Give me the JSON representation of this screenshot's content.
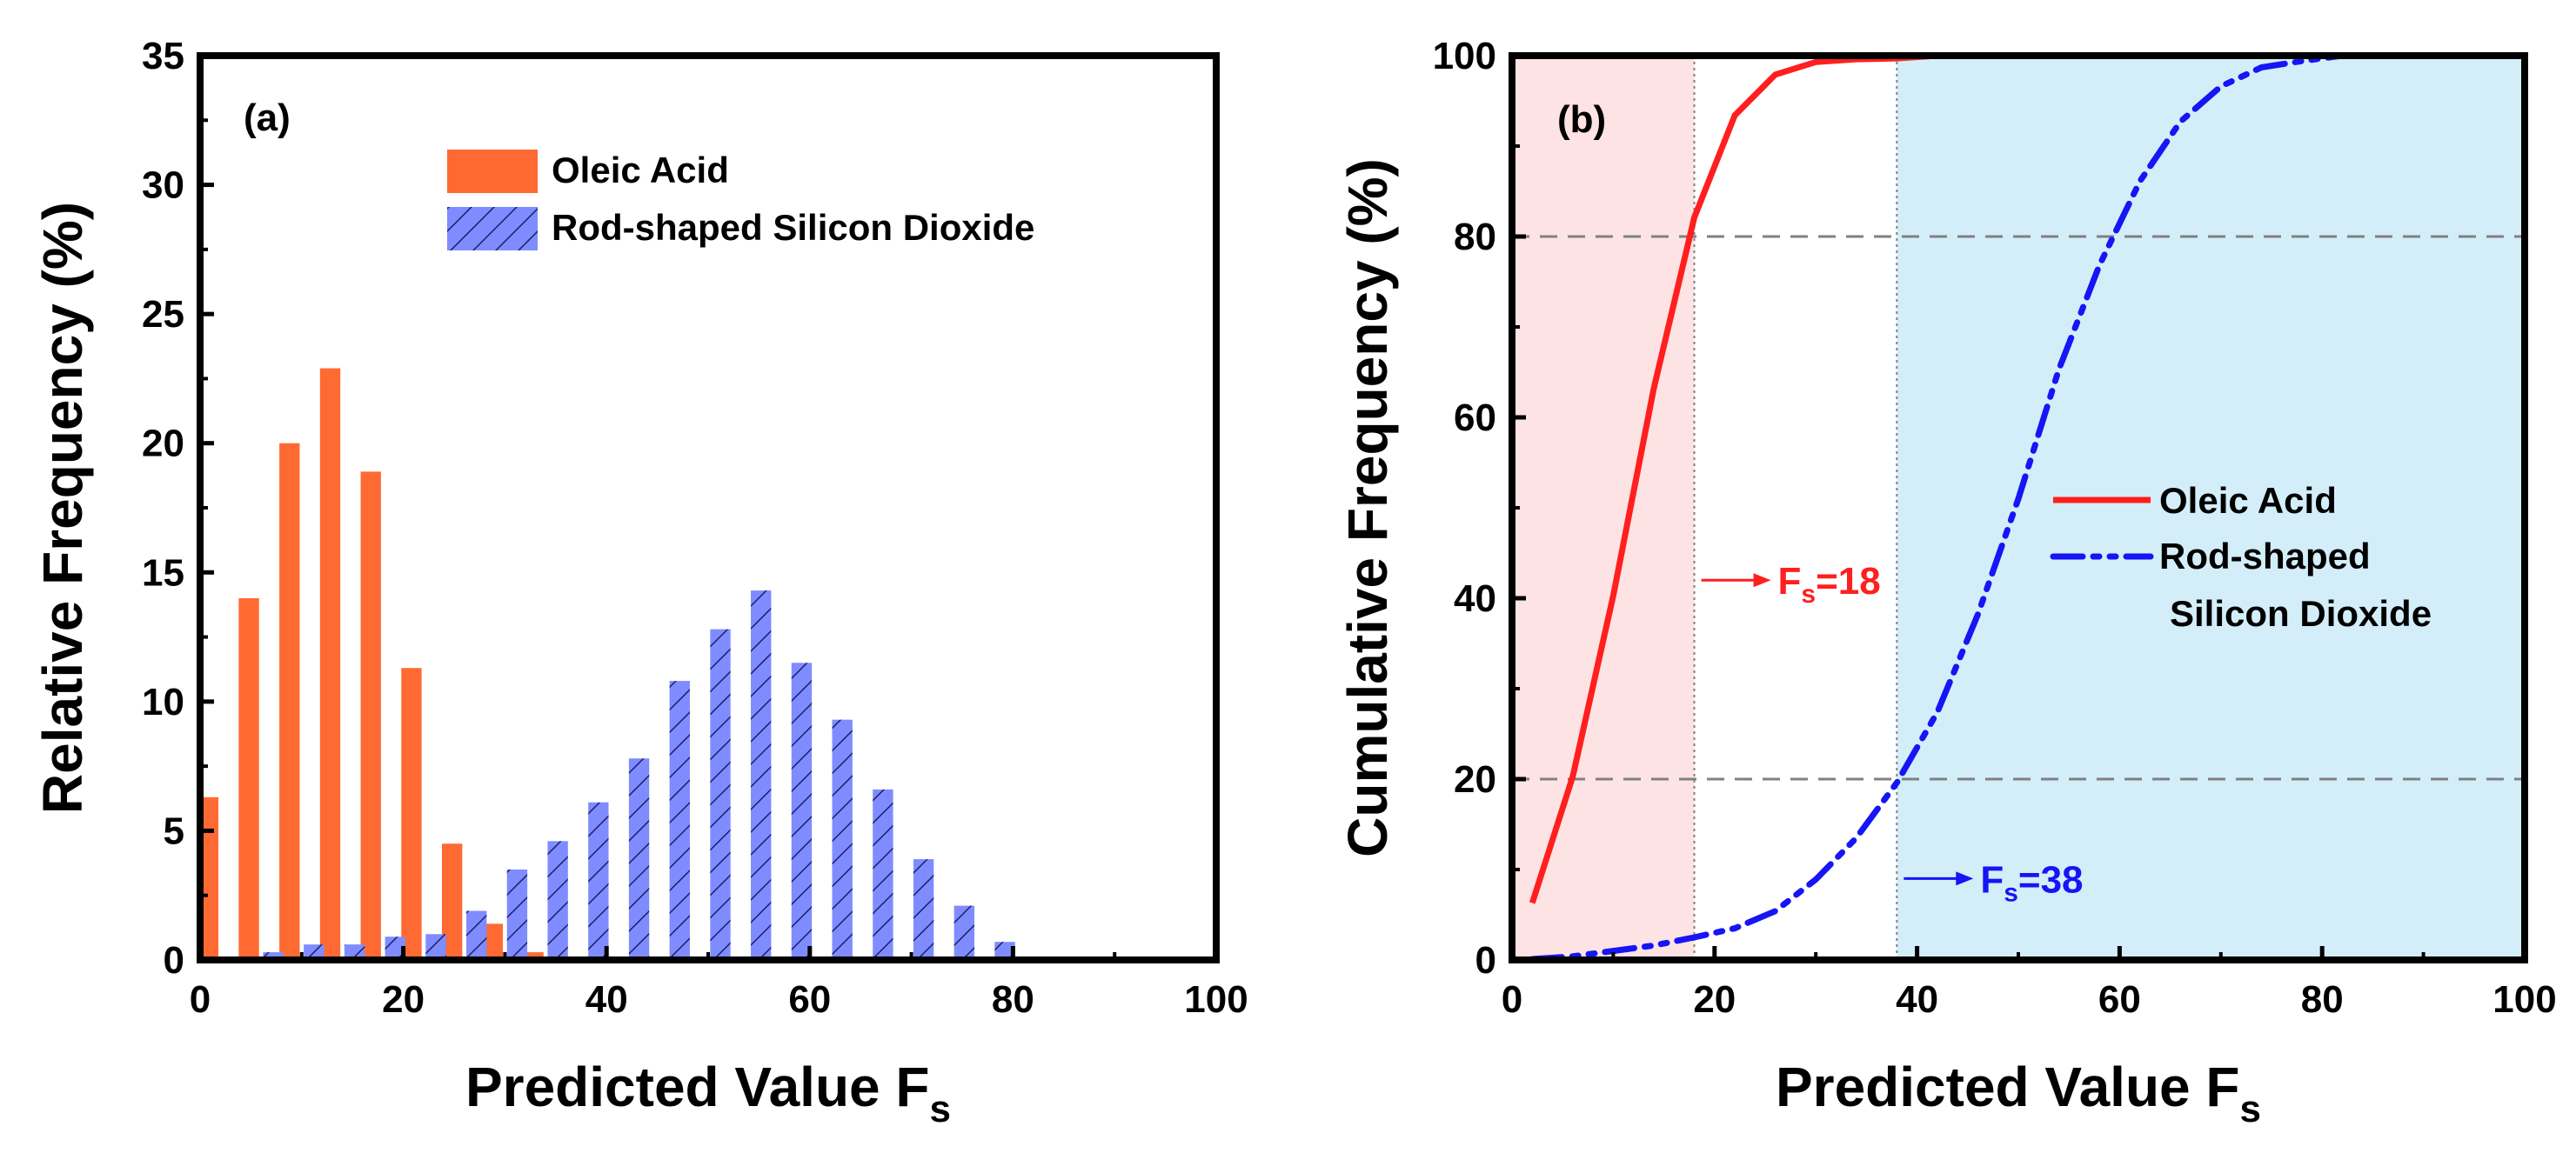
{
  "colors": {
    "oleic_bar": "#ff6a33",
    "silica_bar": "#7f8cff",
    "oleic_line": "#ff1f1f",
    "silica_line": "#1515f5",
    "oleic_region": "#fde3e3",
    "silica_region": "#d3eef9",
    "hatch": "#1a1a66",
    "grid": "#808080"
  },
  "chart_data": [
    {
      "type": "bar",
      "panel_label": "(a)",
      "xlabel": "Predicted Value F",
      "xlabel_sub": "s",
      "ylabel": "Relative Frequency (%)",
      "xlim": [
        0,
        100
      ],
      "ylim": [
        0,
        35
      ],
      "xticks": [
        0,
        20,
        40,
        60,
        80,
        100
      ],
      "yticks": [
        0,
        5,
        10,
        15,
        20,
        25,
        30,
        35
      ],
      "bin_width": 4,
      "legend": {
        "position": "top-center",
        "entries": [
          "Oleic Acid",
          "Rod-shaped Silicon Dioxide"
        ]
      },
      "series": [
        {
          "name": "Oleic Acid",
          "style": "solid",
          "x": [
            0.8,
            4.8,
            8.8,
            12.8,
            16.8,
            20.8,
            24.8,
            28.8,
            32.8
          ],
          "values": [
            6.3,
            14.0,
            20.0,
            22.9,
            18.9,
            11.3,
            4.5,
            1.4,
            0.3
          ]
        },
        {
          "name": "Rod-shaped Silicon Dioxide",
          "style": "hatched",
          "x": [
            3.2,
            7.2,
            11.2,
            15.2,
            19.2,
            23.2,
            27.2,
            31.2,
            35.2,
            39.2,
            43.2,
            47.2,
            51.2,
            55.2,
            59.2,
            63.2,
            67.2,
            71.2,
            75.2,
            79.2
          ],
          "values": [
            0.1,
            0.3,
            0.6,
            0.6,
            0.9,
            1.0,
            1.9,
            3.5,
            4.6,
            6.1,
            7.8,
            10.8,
            12.8,
            14.3,
            11.5,
            9.3,
            6.6,
            3.9,
            2.1,
            0.7
          ]
        }
      ]
    },
    {
      "type": "line",
      "panel_label": "(b)",
      "xlabel": "Predicted Value F",
      "xlabel_sub": "s",
      "ylabel": "Cumulative Frequency (%)",
      "xlim": [
        0,
        100
      ],
      "ylim": [
        0,
        100
      ],
      "xticks": [
        0,
        20,
        40,
        60,
        80,
        100
      ],
      "yticks": [
        0,
        20,
        40,
        60,
        80,
        100
      ],
      "hlines": [
        20,
        80
      ],
      "regions": [
        {
          "series": "Oleic Acid",
          "x0": 0,
          "x1": 18
        },
        {
          "series": "Rod-shaped Silicon Dioxide",
          "x0": 38,
          "x1": 100
        }
      ],
      "annotations": [
        {
          "label": "F",
          "sub": "s",
          "value": "=18",
          "x": 18,
          "y": 42,
          "series": "Oleic Acid"
        },
        {
          "label": "F",
          "sub": "s",
          "value": "=38",
          "x": 38,
          "y": 9,
          "series": "Rod-shaped Silicon Dioxide"
        }
      ],
      "legend": {
        "position": "center-right",
        "entries": [
          {
            "lines": [
              "Oleic Acid"
            ]
          },
          {
            "lines": [
              "Rod-shaped",
              "Silicon Dioxide"
            ]
          }
        ]
      },
      "series": [
        {
          "name": "Oleic Acid",
          "style": "solid",
          "x": [
            2,
            6,
            10,
            14,
            18,
            22,
            26,
            30,
            34,
            38,
            42,
            100
          ],
          "y": [
            6.3,
            20.3,
            40.3,
            63.2,
            82.1,
            93.4,
            97.9,
            99.3,
            99.6,
            99.7,
            100,
            100
          ]
        },
        {
          "name": "Rod-shaped Silicon Dioxide",
          "style": "dashdotdot",
          "x": [
            2,
            6,
            10,
            14,
            18,
            22,
            26,
            30,
            34,
            38,
            42,
            46,
            50,
            54,
            58,
            62,
            66,
            70,
            74,
            78,
            82,
            100
          ],
          "y": [
            0.1,
            0.4,
            1.0,
            1.6,
            2.5,
            3.5,
            5.4,
            8.9,
            13.5,
            19.6,
            27.4,
            38.2,
            51.0,
            65.3,
            76.8,
            86.1,
            92.7,
            96.6,
            98.7,
            99.4,
            100,
            100
          ]
        }
      ]
    }
  ]
}
